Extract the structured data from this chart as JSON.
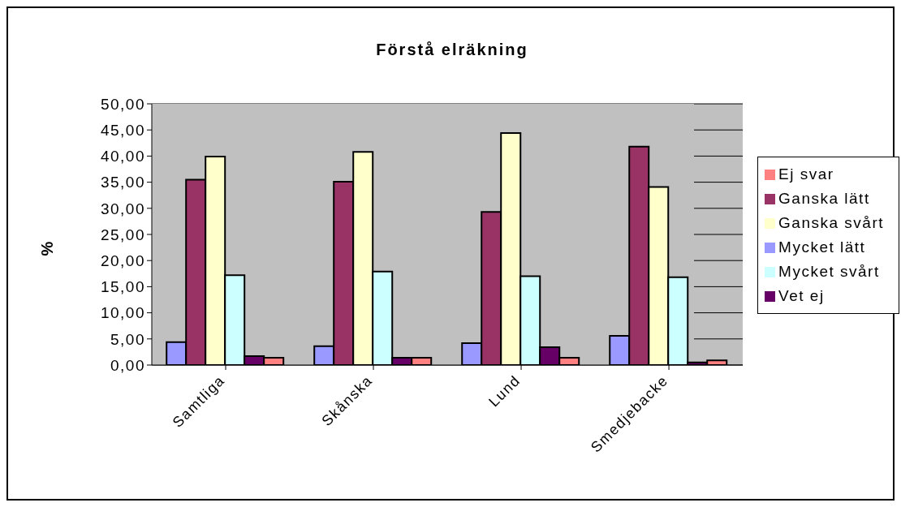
{
  "chart_data": {
    "type": "bar",
    "title": "Förstå elräkning",
    "ylabel": "%",
    "categories": [
      "Samtliga",
      "Skånska",
      "Lund",
      "Smedjebacke"
    ],
    "series": [
      {
        "name": "Mycket lätt",
        "color": "#9999ff",
        "values": [
          4.4,
          3.6,
          4.2,
          5.6
        ]
      },
      {
        "name": "Ganska lätt",
        "color": "#993366",
        "values": [
          35.5,
          35.1,
          29.3,
          41.8
        ]
      },
      {
        "name": "Ganska svårt",
        "color": "#ffffcc",
        "values": [
          39.9,
          40.8,
          44.4,
          34.1
        ]
      },
      {
        "name": "Mycket svårt",
        "color": "#ccffff",
        "values": [
          17.2,
          17.9,
          17.0,
          16.8
        ]
      },
      {
        "name": "Vet ej",
        "color": "#660066",
        "values": [
          1.7,
          1.4,
          3.4,
          0.5
        ]
      },
      {
        "name": "Ej svar",
        "color": "#ff8080",
        "values": [
          1.4,
          1.4,
          1.4,
          0.9
        ]
      }
    ],
    "ylim": [
      0,
      50
    ],
    "yticks": [
      {
        "value": 0,
        "label": "0,00"
      },
      {
        "value": 5,
        "label": "5,00"
      },
      {
        "value": 10,
        "label": "10,00"
      },
      {
        "value": 15,
        "label": "15,00"
      },
      {
        "value": 20,
        "label": "20,00"
      },
      {
        "value": 25,
        "label": "25,00"
      },
      {
        "value": 30,
        "label": "30,00"
      },
      {
        "value": 35,
        "label": "35,00"
      },
      {
        "value": 40,
        "label": "40,00"
      },
      {
        "value": 45,
        "label": "45,00"
      },
      {
        "value": 50,
        "label": "50,00"
      }
    ],
    "grid": "y",
    "legend": "right"
  }
}
